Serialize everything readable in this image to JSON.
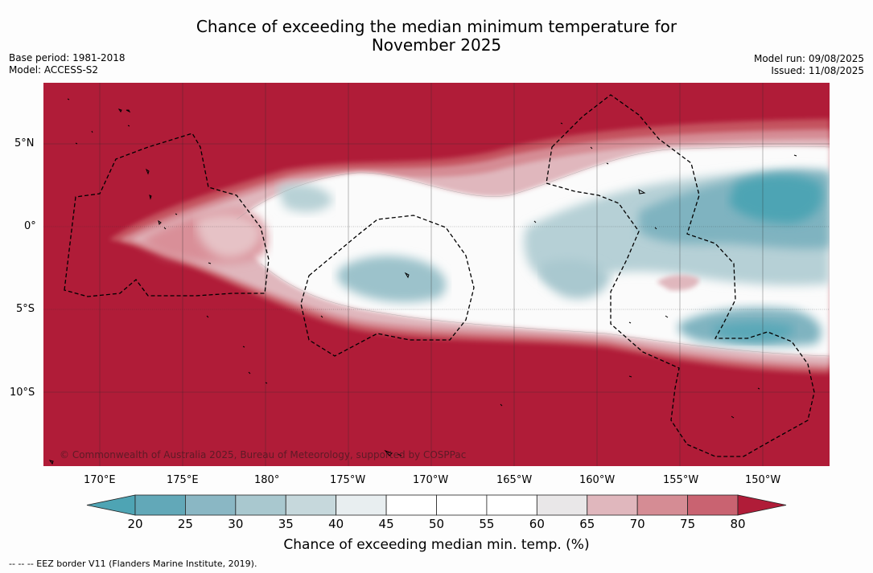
{
  "header": {
    "title_line1": "Chance of exceeding the median minimum temperature for",
    "title_line2": "November 2025",
    "base_period": "Base period: 1981-2018",
    "model": "Model: ACCESS-S2",
    "model_run": "Model run: 09/08/2025",
    "issued": "Issued: 11/08/2025"
  },
  "map": {
    "copyright": "© Commonwealth of Australia 2025, Bureau of Meteorology, supported by COSPPac",
    "lat_labels": [
      "5°N",
      "0°",
      "5°S",
      "10°S"
    ],
    "lon_labels": [
      "170°E",
      "175°E",
      "180°",
      "175°W",
      "170°W",
      "165°W",
      "160°W",
      "155°W",
      "150°W"
    ]
  },
  "colorbar": {
    "ticks": [
      "20",
      "25",
      "30",
      "35",
      "40",
      "45",
      "50",
      "55",
      "60",
      "65",
      "70",
      "75",
      "80"
    ],
    "colors": [
      "#62a8b8",
      "#8ab7c4",
      "#a9c8cf",
      "#c6d8dc",
      "#e8eef0",
      "#ffffff",
      "#ffffff",
      "#ffffff",
      "#e9e7e8",
      "#e0b7bd",
      "#d58c94",
      "#c96371",
      "#b8404f"
    ],
    "under_color": "#4ea4b4",
    "over_color": "#b01c38",
    "label": "Chance of exceeding median min. temp. (%)"
  },
  "legend_note": "-- -- -- EEZ border V11 (Flanders Marine Institute, 2019)."
}
